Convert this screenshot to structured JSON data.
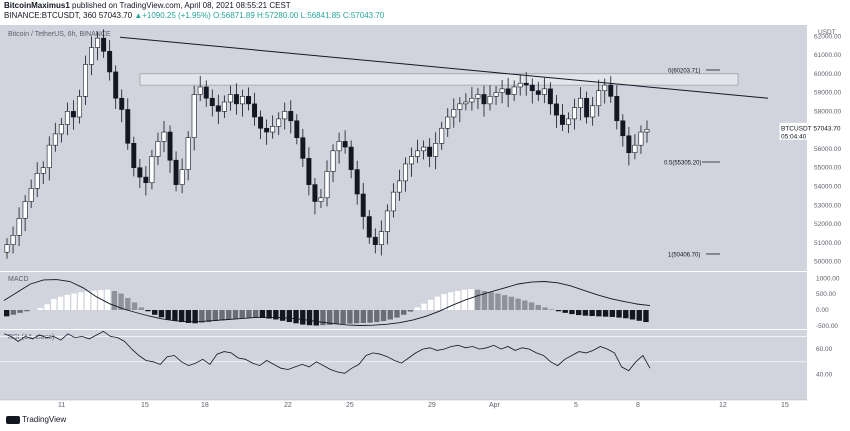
{
  "header": {
    "author": "BitcoinMaximus1",
    "published": "published on TradingView.com, April 08, 2021 08:55:21 CEST",
    "symbol_line": "BINANCE:BTCUSDT, 360",
    "last": "57043.70",
    "change": "▲+1090.25 (+1.95%)",
    "ohlc": "O:56871.89 H:57280.00 L:56841.85 C:57043.70"
  },
  "pane_titles": {
    "price": "Bitcoin / TetherUS, 6h, BINANCE",
    "macd": "MACD",
    "rsi": "RSI (14, close)"
  },
  "footer_brand": "TradingView",
  "chart_data": [
    {
      "type": "candlestick",
      "title": "Bitcoin / TetherUS, 6h, BINANCE",
      "currency": "USDT",
      "ylim": [
        49500,
        62600
      ],
      "y_ticks": [
        50000,
        51000,
        52000,
        53000,
        54000,
        55000,
        56000,
        57000,
        58000,
        59000,
        60000,
        61000,
        62000
      ],
      "x_tick_labels": [
        "11",
        "15",
        "18",
        "22",
        "25",
        "29",
        "Apr",
        "5",
        "8",
        "12",
        "15"
      ],
      "close_series": [
        50900,
        51400,
        52300,
        53200,
        53900,
        54700,
        55000,
        56200,
        56800,
        57300,
        58000,
        57700,
        58800,
        60500,
        61400,
        61900,
        61200,
        60100,
        58700,
        58100,
        56300,
        55000,
        54500,
        54200,
        55600,
        56400,
        56900,
        55400,
        54100,
        54900,
        56600,
        58900,
        59300,
        58700,
        58300,
        58000,
        58500,
        58900,
        58400,
        58800,
        58400,
        57700,
        57100,
        56900,
        57200,
        57600,
        58000,
        57500,
        56600,
        55500,
        54100,
        53200,
        53400,
        54800,
        55900,
        56400,
        56100,
        54900,
        53600,
        52400,
        51300,
        50900,
        51600,
        52700,
        53700,
        54300,
        55200,
        55600,
        55900,
        56100,
        55600,
        56300,
        57100,
        57700,
        58100,
        58400,
        58500,
        58700,
        58900,
        58400,
        58800,
        59000,
        59200,
        58900,
        59300,
        59500,
        59400,
        59100,
        58900,
        59200,
        58400,
        57800,
        57300,
        57600,
        58200,
        58700,
        57700,
        58300,
        59100,
        59400,
        58800,
        57500,
        56700,
        55800,
        56200,
        56900,
        57043.7
      ],
      "current_price": "57043.70",
      "price_tag": "BTCUSDT",
      "countdown": "05:04:40",
      "resistance_zone": [
        59400,
        60000
      ],
      "descending_trendline": [
        {
          "date": "Mar 13",
          "price": 61950
        },
        {
          "date": "Apr 14",
          "price": 58700
        }
      ],
      "fib_levels": [
        {
          "label": "0(60203.71)",
          "value": 60203.71
        },
        {
          "label": "0.5(55305.20)",
          "value": 55305.2
        },
        {
          "label": "1(50406.70)",
          "value": 50406.7
        }
      ]
    },
    {
      "type": "bar",
      "title": "MACD",
      "ylim": [
        -600,
        1200
      ],
      "y_ticks": [
        1000,
        500,
        0,
        -500
      ],
      "histogram": [
        -200,
        -150,
        -90,
        -40,
        0,
        60,
        180,
        350,
        420,
        480,
        520,
        560,
        590,
        610,
        630,
        640,
        600,
        520,
        380,
        240,
        80,
        -40,
        -150,
        -230,
        -300,
        -340,
        -380,
        -410,
        -420,
        -400,
        -380,
        -350,
        -330,
        -300,
        -280,
        -260,
        -250,
        -240,
        -250,
        -270,
        -300,
        -340,
        -380,
        -420,
        -460,
        -480,
        -490,
        -480,
        -470,
        -450,
        -440,
        -430,
        -420,
        -410,
        -400,
        -380,
        -350,
        -300,
        -240,
        -150,
        -50,
        80,
        200,
        320,
        420,
        500,
        560,
        600,
        640,
        660,
        640,
        600,
        560,
        520,
        470,
        420,
        360,
        300,
        240,
        160,
        80,
        20,
        -40,
        -90,
        -130,
        -160,
        -180,
        -190,
        -200,
        -210,
        -220,
        -240,
        -260,
        -300,
        -340,
        -380
      ],
      "signal_line": [
        300,
        560,
        820,
        950,
        960,
        900,
        700,
        420,
        200,
        40,
        -80,
        -190,
        -280,
        -340,
        -370,
        -360,
        -330,
        -300,
        -270,
        -240,
        -230,
        -240,
        -270,
        -320,
        -380,
        -430,
        -470,
        -490,
        -480,
        -450,
        -400,
        -320,
        -200,
        -40,
        150,
        320,
        460,
        580,
        700,
        820,
        880,
        900,
        860,
        760,
        620,
        480,
        360,
        270,
        190,
        140
      ]
    },
    {
      "type": "line",
      "title": "RSI (14, close)",
      "ylim": [
        20,
        75
      ],
      "y_ticks": [
        60,
        40
      ],
      "values": [
        72,
        70,
        66,
        70,
        68,
        71,
        69,
        70,
        67,
        72,
        69,
        70,
        68,
        71,
        74,
        70,
        69,
        66,
        60,
        55,
        51,
        50,
        48,
        54,
        55,
        50,
        47,
        49,
        52,
        48,
        56,
        58,
        57,
        53,
        52,
        49,
        47,
        51,
        48,
        45,
        44,
        46,
        48,
        46,
        50,
        47,
        44,
        42,
        41,
        45,
        48,
        55,
        57,
        56,
        54,
        51,
        49,
        53,
        57,
        60,
        61,
        59,
        60,
        62,
        63,
        61,
        62,
        60,
        61,
        63,
        60,
        62,
        59,
        61,
        60,
        57,
        55,
        50,
        47,
        52,
        55,
        58,
        57,
        59,
        62,
        60,
        57,
        46,
        43,
        50,
        55,
        45
      ]
    }
  ]
}
